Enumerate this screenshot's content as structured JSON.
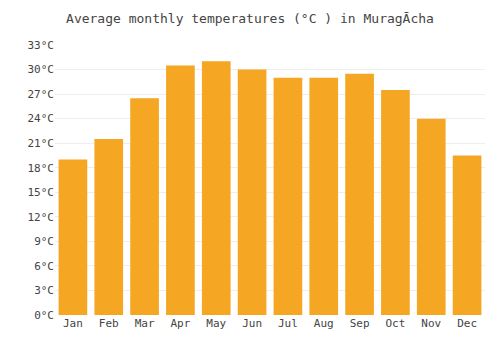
{
  "chart_data": {
    "type": "bar",
    "title": "Average monthly temperatures (°C ) in MuragĀcha",
    "categories": [
      "Jan",
      "Feb",
      "Mar",
      "Apr",
      "May",
      "Jun",
      "Jul",
      "Aug",
      "Sep",
      "Oct",
      "Nov",
      "Dec"
    ],
    "values": [
      19.0,
      21.5,
      26.5,
      30.5,
      31.0,
      30.0,
      29.0,
      29.0,
      29.5,
      27.5,
      24.0,
      19.5
    ],
    "color": "#F5A623",
    "ylim": [
      0,
      33
    ],
    "yticks": [
      {
        "value": 0,
        "label": "0°C"
      },
      {
        "value": 3,
        "label": "3°C"
      },
      {
        "value": 6,
        "label": "6°C"
      },
      {
        "value": 9,
        "label": "9°C"
      },
      {
        "value": 12,
        "label": "12°C"
      },
      {
        "value": 15,
        "label": "15°C"
      },
      {
        "value": 18,
        "label": "18°C"
      },
      {
        "value": 21,
        "label": "21°C"
      },
      {
        "value": 24,
        "label": "24°C"
      },
      {
        "value": 27,
        "label": "27°C"
      },
      {
        "value": 30,
        "label": "30°C"
      },
      {
        "value": 33,
        "label": "33°C"
      }
    ],
    "grid": true
  }
}
